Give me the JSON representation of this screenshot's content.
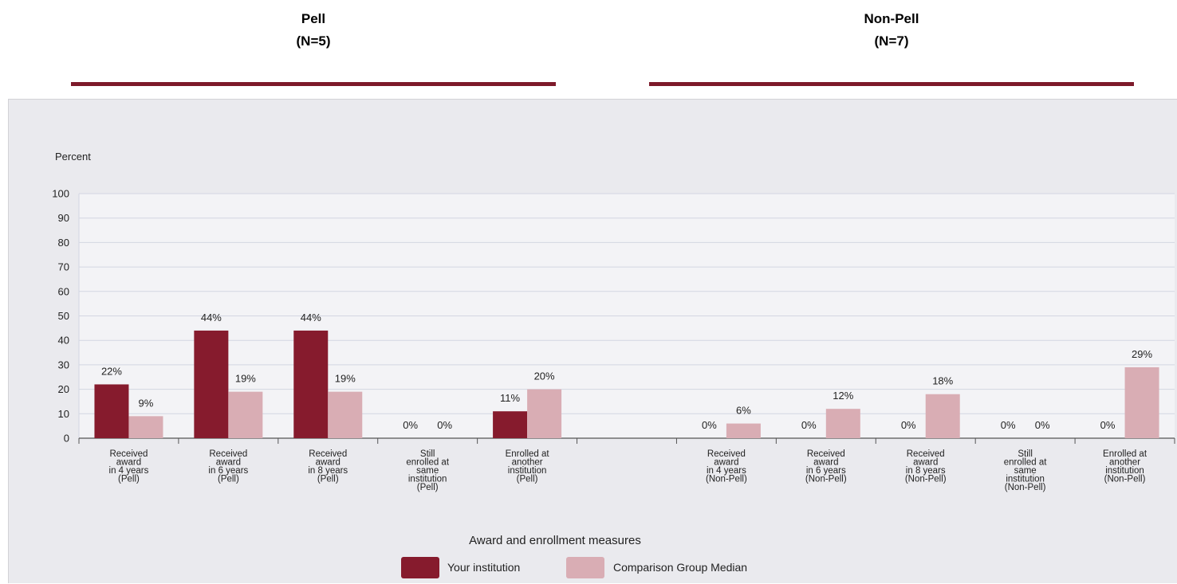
{
  "groups": [
    {
      "title": "Pell",
      "n": "(N=5)"
    },
    {
      "title": "Non-Pell",
      "n": "(N=7)"
    }
  ],
  "colors": {
    "your_institution": "#861b2d",
    "comparison": "#d9adb4",
    "rule": "#7d1a2a",
    "plot_bg": "#f3f3f6",
    "panel_bg": "#eaeaee"
  },
  "chart_data": {
    "type": "bar",
    "ylabel": "Percent",
    "xlabel": "Award and enrollment measures",
    "ylim": [
      0,
      100
    ],
    "yticks": [
      0,
      10,
      20,
      30,
      40,
      50,
      60,
      70,
      80,
      90,
      100
    ],
    "grid": true,
    "legend_position": "bottom",
    "categories": [
      [
        "Received",
        "award",
        "in 4 years",
        "(Pell)"
      ],
      [
        "Received",
        "award",
        "in 6 years",
        "(Pell)"
      ],
      [
        "Received",
        "award",
        "in 8 years",
        "(Pell)"
      ],
      [
        "Still",
        "enrolled at",
        "same",
        "institution",
        "(Pell)"
      ],
      [
        "Enrolled at",
        "another",
        "institution",
        "(Pell)"
      ],
      [],
      [
        "Received",
        "award",
        "in 4 years",
        "(Non-Pell)"
      ],
      [
        "Received",
        "award",
        "in 6 years",
        "(Non-Pell)"
      ],
      [
        "Received",
        "award",
        "in 8 years",
        "(Non-Pell)"
      ],
      [
        "Still",
        "enrolled at",
        "same",
        "institution",
        "(Non-Pell)"
      ],
      [
        "Enrolled at",
        "another",
        "institution",
        "(Non-Pell)"
      ]
    ],
    "series": [
      {
        "name": "Your institution",
        "values": [
          22,
          44,
          44,
          0,
          11,
          null,
          0,
          0,
          0,
          0,
          0
        ],
        "labels": [
          "22%",
          "44%",
          "44%",
          "0%",
          "11%",
          "",
          "0%",
          "0%",
          "0%",
          "0%",
          "0%"
        ]
      },
      {
        "name": "Comparison Group Median",
        "values": [
          9,
          19,
          19,
          0,
          20,
          null,
          6,
          12,
          18,
          0,
          29
        ],
        "labels": [
          "9%",
          "19%",
          "19%",
          "0%",
          "20%",
          "",
          "6%",
          "12%",
          "18%",
          "0%",
          "29%"
        ]
      }
    ]
  }
}
